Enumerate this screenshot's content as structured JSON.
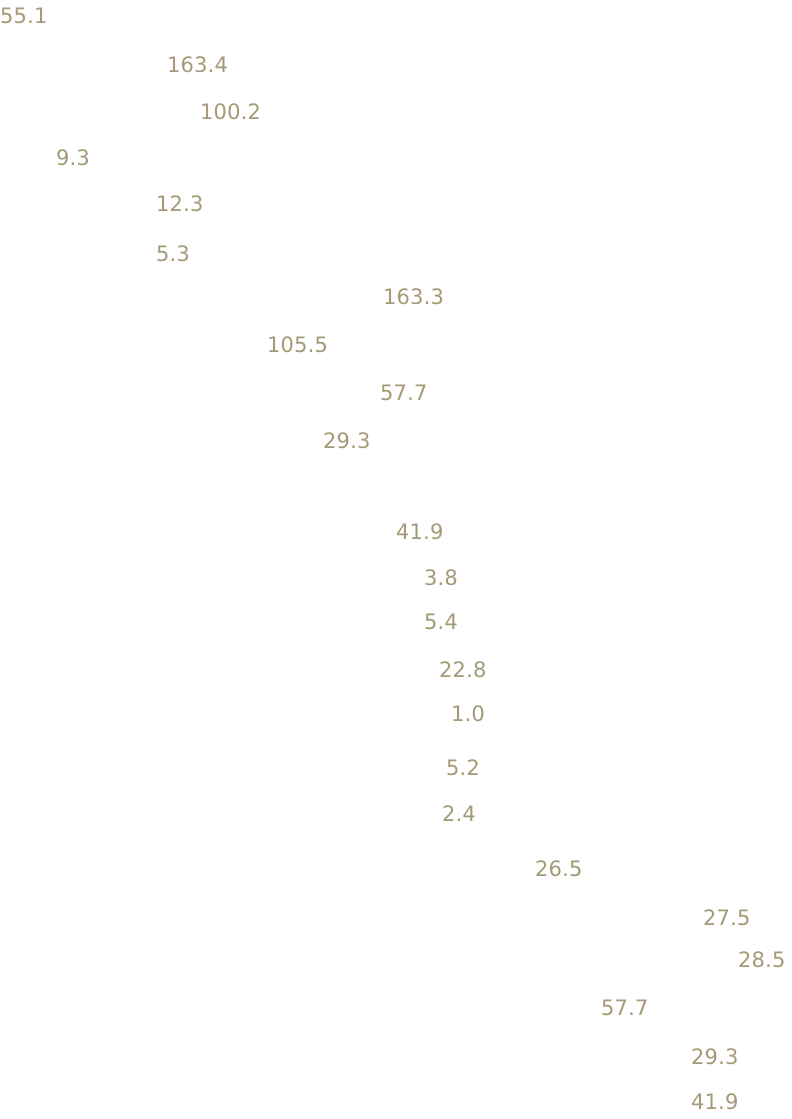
{
  "text_color": "#a49a78",
  "values": [
    "55.1",
    "163.4",
    "100.2",
    "9.3",
    "12.3",
    "5.3",
    "163.3",
    "105.5",
    "57.7",
    "29.3",
    "41.9",
    "3.8",
    "5.4",
    "22.8",
    "1.0",
    "5.2",
    "2.4",
    "26.5",
    "27.5",
    "28.5",
    "57.7",
    "29.3",
    "41.9"
  ]
}
